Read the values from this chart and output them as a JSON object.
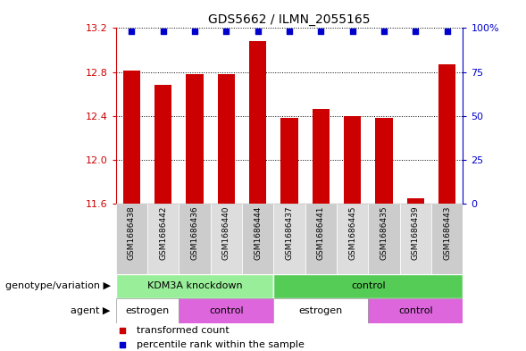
{
  "title": "GDS5662 / ILMN_2055165",
  "samples": [
    "GSM1686438",
    "GSM1686442",
    "GSM1686436",
    "GSM1686440",
    "GSM1686444",
    "GSM1686437",
    "GSM1686441",
    "GSM1686445",
    "GSM1686435",
    "GSM1686439",
    "GSM1686443"
  ],
  "bar_values": [
    12.81,
    12.68,
    12.78,
    12.78,
    13.08,
    12.38,
    12.46,
    12.4,
    12.38,
    11.65,
    12.87
  ],
  "ylim_low": 11.6,
  "ylim_high": 13.2,
  "yticks": [
    11.6,
    12.0,
    12.4,
    12.8,
    13.2
  ],
  "y2ticks": [
    0,
    25,
    50,
    75,
    100
  ],
  "y2labels": [
    "0",
    "25",
    "50",
    "75",
    "100%"
  ],
  "bar_color": "#cc0000",
  "dot_color": "#0000cc",
  "bar_width": 0.55,
  "genotype_groups": [
    {
      "label": "KDM3A knockdown",
      "start": 0,
      "end": 5,
      "color": "#99ee99"
    },
    {
      "label": "control",
      "start": 5,
      "end": 11,
      "color": "#55cc55"
    }
  ],
  "agent_groups": [
    {
      "label": "estrogen",
      "start": 0,
      "end": 2,
      "color": "#ffffff"
    },
    {
      "label": "control",
      "start": 2,
      "end": 5,
      "color": "#dd66dd"
    },
    {
      "label": "estrogen",
      "start": 5,
      "end": 8,
      "color": "#ffffff"
    },
    {
      "label": "control",
      "start": 8,
      "end": 11,
      "color": "#dd66dd"
    }
  ],
  "sample_bg_even": "#cccccc",
  "sample_bg_odd": "#dddddd",
  "legend_items": [
    {
      "label": "transformed count",
      "color": "#cc0000"
    },
    {
      "label": "percentile rank within the sample",
      "color": "#0000cc"
    }
  ],
  "xlabel_genotype": "genotype/variation",
  "xlabel_agent": "agent",
  "left_color": "#cc0000",
  "right_color": "#0000cc",
  "title_fontsize": 10,
  "tick_fontsize": 8,
  "label_fontsize": 8,
  "legend_fontsize": 8
}
